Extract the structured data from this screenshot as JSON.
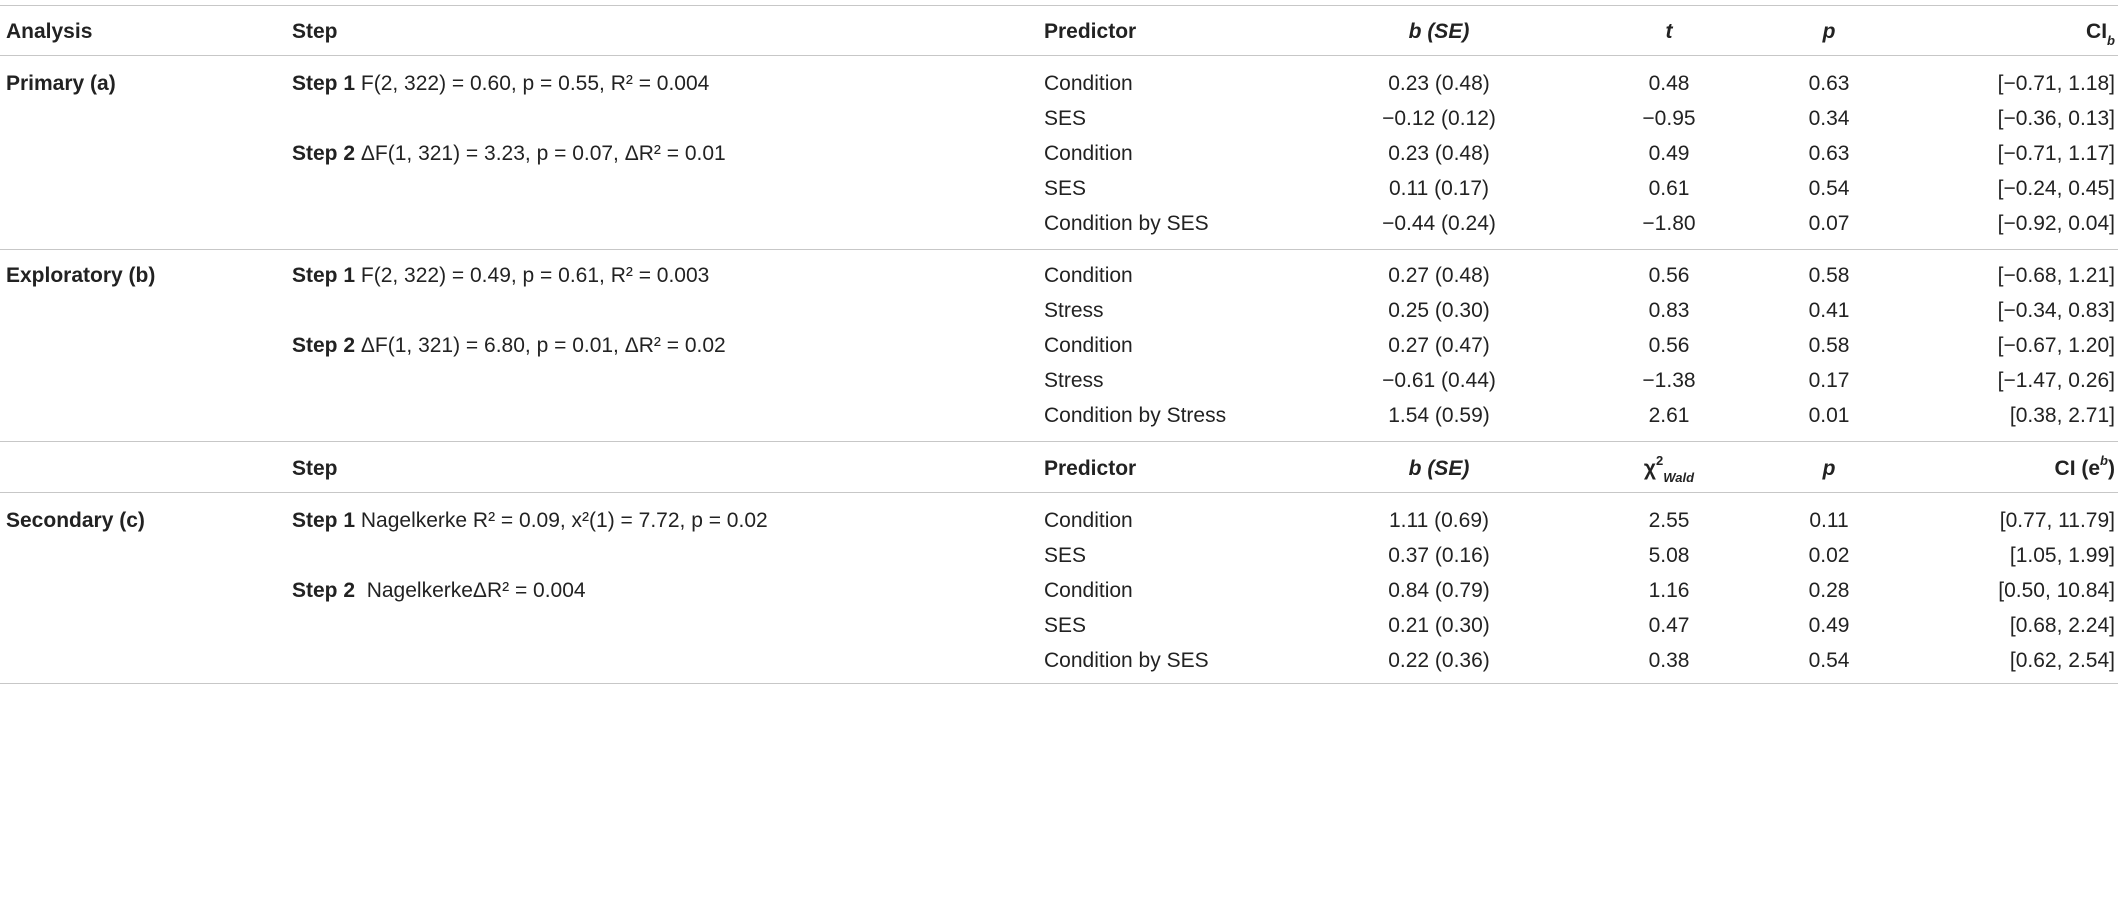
{
  "header1": {
    "analysis": "Analysis",
    "step": "Step",
    "predictor": "Predictor",
    "b_se": "b (SE)",
    "t": "t",
    "p": "p",
    "ci": "CI",
    "ci_sub": "b"
  },
  "header2": {
    "step": "Step",
    "predictor": "Predictor",
    "b_se": "b (SE)",
    "chi": "χ",
    "chi_sup": "2",
    "chi_sub": "Wald",
    "p": "p",
    "ci": "CI (e",
    "ci_sup": "b",
    "ci_close": ")"
  },
  "sections": [
    {
      "label": "Primary (a)",
      "steps": [
        {
          "label": "Step 1",
          "stat": "F(2, 322) = 0.60, p = 0.55, R² = 0.004"
        },
        {
          "label": "Step 2",
          "stat": "ΔF(1, 321) = 3.23, p = 0.07, ΔR² = 0.01"
        }
      ],
      "rows": [
        {
          "predictor": "Condition",
          "b": "0.23 (0.48)",
          "t": "0.48",
          "p": "0.63",
          "ci": "[−0.71, 1.18]"
        },
        {
          "predictor": "SES",
          "b": "−0.12 (0.12)",
          "t": "−0.95",
          "p": "0.34",
          "ci": "[−0.36, 0.13]"
        },
        {
          "predictor": "Condition",
          "b": "0.23 (0.48)",
          "t": "0.49",
          "p": "0.63",
          "ci": "[−0.71, 1.17]"
        },
        {
          "predictor": "SES",
          "b": "0.11 (0.17)",
          "t": "0.61",
          "p": "0.54",
          "ci": "[−0.24, 0.45]"
        },
        {
          "predictor": "Condition by SES",
          "b": "−0.44 (0.24)",
          "t": "−1.80",
          "p": "0.07",
          "ci": "[−0.92, 0.04]"
        }
      ]
    },
    {
      "label": "Exploratory (b)",
      "steps": [
        {
          "label": "Step 1",
          "stat": "F(2, 322) = 0.49, p = 0.61, R² = 0.003"
        },
        {
          "label": "Step 2",
          "stat": "ΔF(1, 321) = 6.80, p = 0.01, ΔR² = 0.02"
        }
      ],
      "rows": [
        {
          "predictor": "Condition",
          "b": "0.27 (0.48)",
          "t": "0.56",
          "p": "0.58",
          "ci": "[−0.68, 1.21]"
        },
        {
          "predictor": "Stress",
          "b": "0.25 (0.30)",
          "t": "0.83",
          "p": "0.41",
          "ci": "[−0.34, 0.83]"
        },
        {
          "predictor": "Condition",
          "b": "0.27 (0.47)",
          "t": "0.56",
          "p": "0.58",
          "ci": "[−0.67, 1.20]"
        },
        {
          "predictor": "Stress",
          "b": "−0.61 (0.44)",
          "t": "−1.38",
          "p": "0.17",
          "ci": "[−1.47, 0.26]"
        },
        {
          "predictor": "Condition by Stress",
          "b": "1.54 (0.59)",
          "t": "2.61",
          "p": "0.01",
          "ci": "[0.38, 2.71]"
        }
      ]
    },
    {
      "label": "Secondary (c)",
      "steps": [
        {
          "label": "Step 1",
          "stat": "Nagelkerke R² = 0.09, x²(1) = 7.72, p = 0.02"
        },
        {
          "label": "Step 2",
          "stat": "NagelkerkeΔR² = 0.004"
        }
      ],
      "rows": [
        {
          "predictor": "Condition",
          "b": "1.11 (0.69)",
          "t": "2.55",
          "p": "0.11",
          "ci": "[0.77, 11.79]"
        },
        {
          "predictor": "SES",
          "b": "0.37 (0.16)",
          "t": "5.08",
          "p": "0.02",
          "ci": "[1.05, 1.99]"
        },
        {
          "predictor": "Condition",
          "b": "0.84 (0.79)",
          "t": "1.16",
          "p": "0.28",
          "ci": "[0.50, 10.84]"
        },
        {
          "predictor": "SES",
          "b": "0.21 (0.30)",
          "t": "0.47",
          "p": "0.49",
          "ci": "[0.68, 2.24]"
        },
        {
          "predictor": "Condition by SES",
          "b": "0.22 (0.36)",
          "t": "0.38",
          "p": "0.54",
          "ci": "[0.62, 2.54]"
        }
      ]
    }
  ]
}
